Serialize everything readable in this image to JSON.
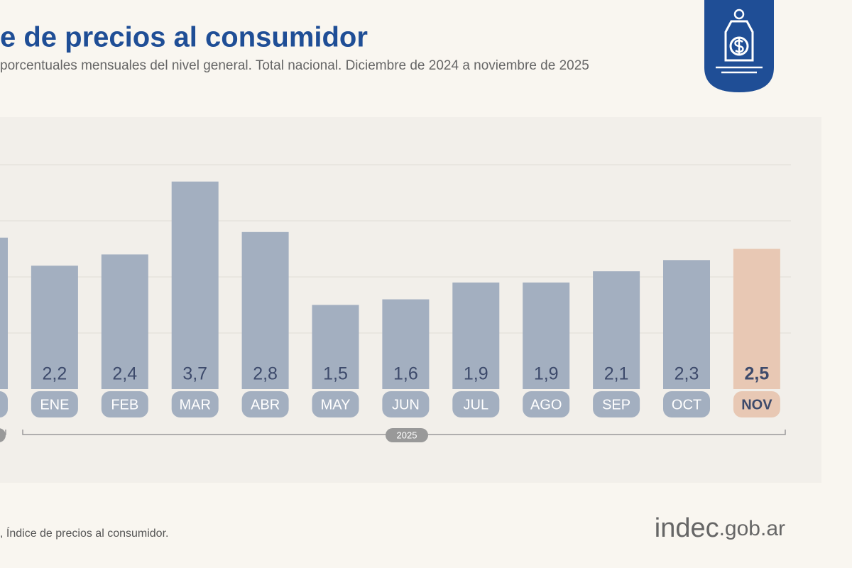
{
  "chart_data": {
    "type": "bar",
    "title": "e de precios al consumidor",
    "subtitle": "porcentuales mensuales del nivel general. Total nacional. Diciembre de 2024 a noviembre de 2025",
    "categories": [
      null,
      "ENE",
      "FEB",
      "MAR",
      "ABR",
      "MAY",
      "JUN",
      "JUL",
      "AGO",
      "SEP",
      "OCT",
      "NOV"
    ],
    "values": [
      2.7,
      2.2,
      2.4,
      3.7,
      2.8,
      1.5,
      1.6,
      1.9,
      1.9,
      2.1,
      2.3,
      2.5
    ],
    "value_labels": [
      null,
      "2,2",
      "2,4",
      "3,7",
      "2,8",
      "1,5",
      "1,6",
      "1,9",
      "1,9",
      "2,1",
      "2,3",
      "2,5"
    ],
    "colors": [
      "#a3afc0",
      "#a3afc0",
      "#a3afc0",
      "#a3afc0",
      "#a3afc0",
      "#a3afc0",
      "#a3afc0",
      "#a3afc0",
      "#a3afc0",
      "#a3afc0",
      "#a3afc0",
      "#e8c8b4"
    ],
    "ylim": [
      0,
      4
    ],
    "yticks": [
      1,
      2,
      3,
      4
    ],
    "grid": true,
    "group_label": "2025",
    "footnote": ", Índice de precios al consumidor.",
    "logo": {
      "main": "indec",
      "suffix": ".gob.ar"
    }
  }
}
